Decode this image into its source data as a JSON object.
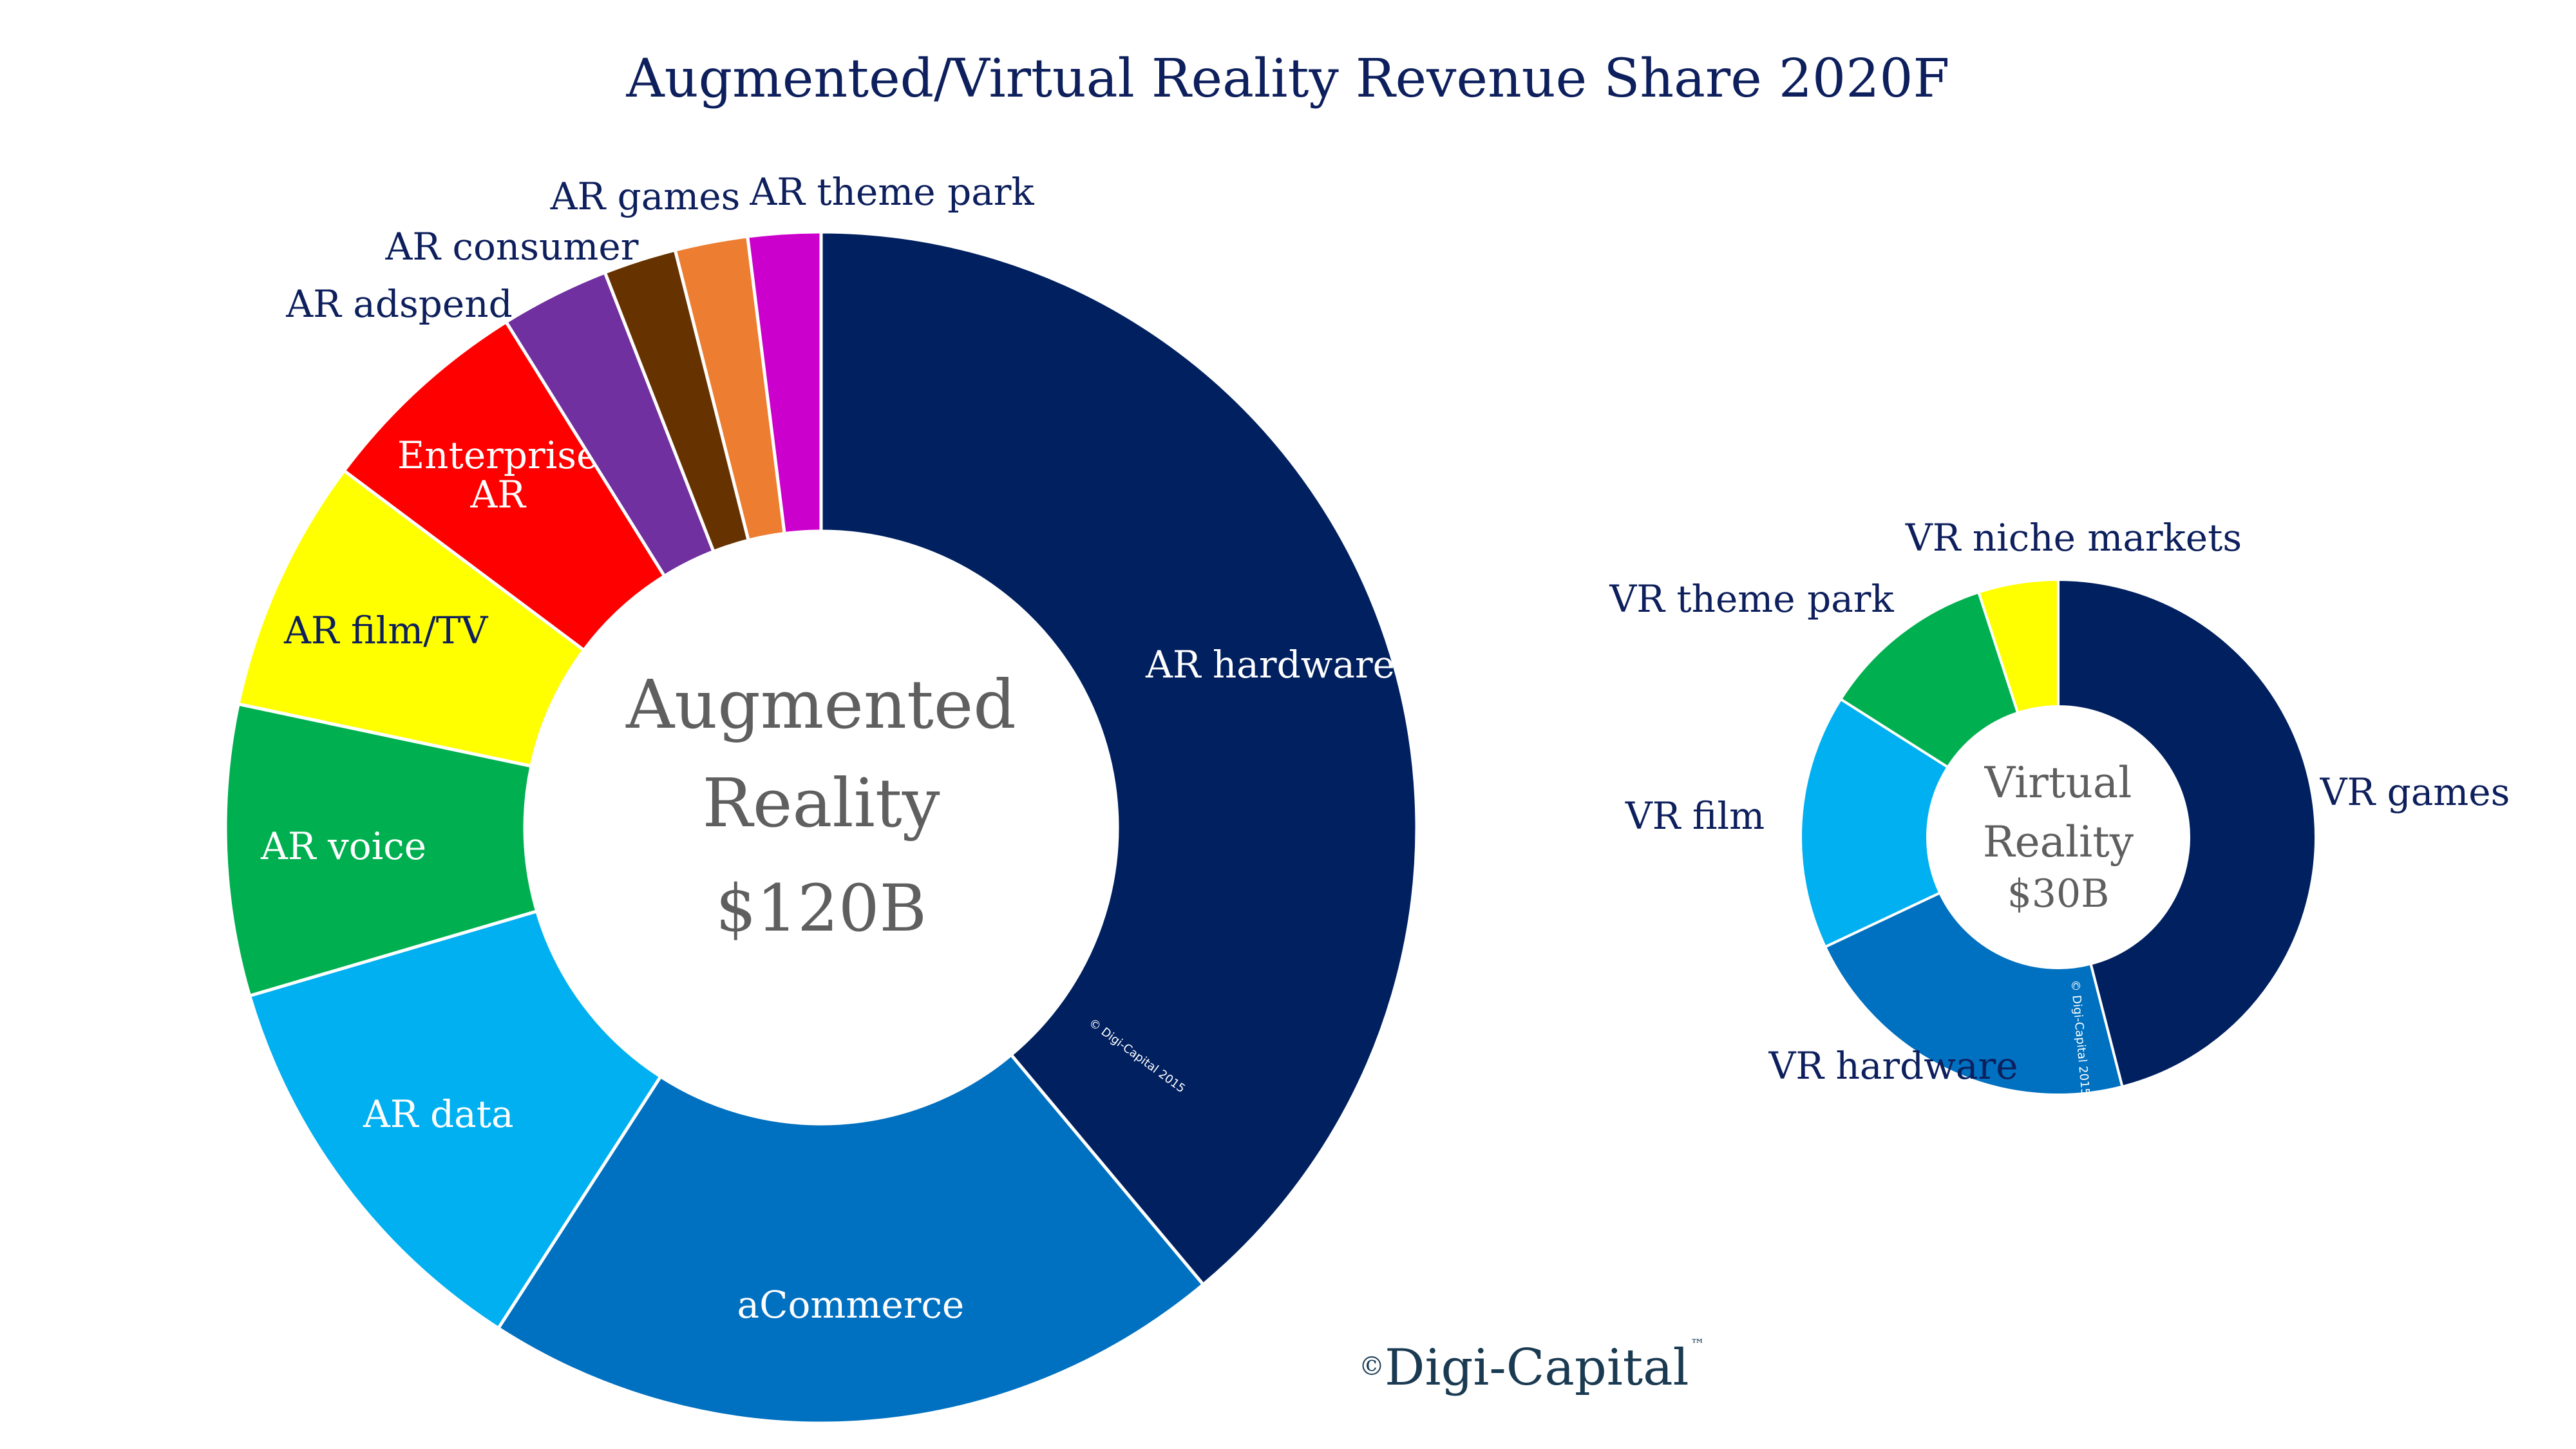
{
  "title": "Augmented/Virtual Reality Revenue Share 2020F",
  "chart_data": [
    {
      "type": "pie",
      "name": "Augmented Reality",
      "center_label": [
        "Augmented",
        "Reality",
        "$120B"
      ],
      "total": "$120B",
      "unit": "percent of total",
      "categories": [
        "AR hardware",
        "aCommerce",
        "AR data",
        "AR voice",
        "AR film/TV",
        "Enterprise AR",
        "AR adspend",
        "AR consumer",
        "AR games",
        "AR theme park"
      ],
      "values": [
        39.5,
        20.5,
        11.5,
        8.0,
        7.0,
        6.0,
        3.0,
        2.0,
        2.0,
        2.0
      ],
      "colors": [
        "#002060",
        "#0070c0",
        "#00b0f0",
        "#00b050",
        "#ffff00",
        "#ff0000",
        "#7030a0",
        "#663300",
        "#ed7d31",
        "#cc00cc"
      ],
      "label_colors": [
        "#ffffff",
        "#ffffff",
        "#ffffff",
        "#ffffff",
        "#0d1f5c",
        "#ffffff",
        "#0d1f5c",
        "#0d1f5c",
        "#0d1f5c",
        "#0d1f5c"
      ],
      "label_inside": [
        true,
        true,
        true,
        true,
        true,
        true,
        false,
        false,
        false,
        false
      ],
      "watermark": "© Digi-Capital 2015"
    },
    {
      "type": "pie",
      "name": "Virtual Reality",
      "center_label": [
        "Virtual",
        "Reality",
        "$30B"
      ],
      "total": "$30B",
      "unit": "percent of total",
      "categories": [
        "VR games",
        "VR hardware",
        "VR film",
        "VR theme park",
        "VR niche markets"
      ],
      "values": [
        46.0,
        22.0,
        16.0,
        11.0,
        5.0
      ],
      "colors": [
        "#002060",
        "#0070c0",
        "#00b0f0",
        "#00b050",
        "#ffff00"
      ],
      "label_colors": [
        "#0d1f5c",
        "#0d1f5c",
        "#0d1f5c",
        "#0d1f5c",
        "#0d1f5c"
      ],
      "label_inside": [
        false,
        false,
        false,
        false,
        false
      ],
      "watermark": "© Digi-Capital 2015"
    }
  ],
  "brand": {
    "copyright_symbol": "©",
    "name": "Digi-Capital",
    "tm": "™"
  }
}
